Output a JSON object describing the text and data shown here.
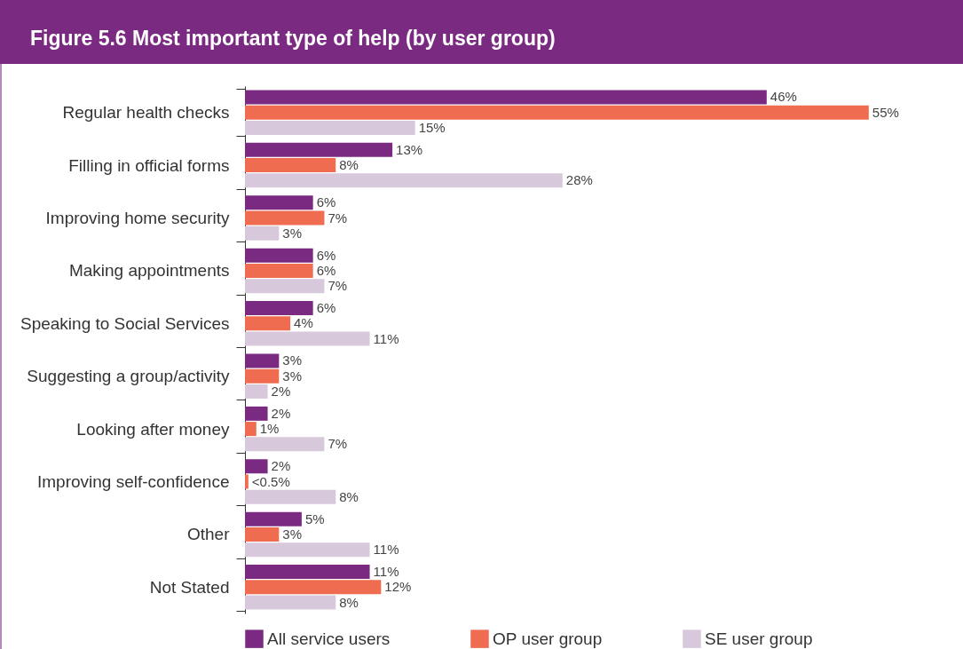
{
  "chart_data": {
    "type": "bar",
    "orientation": "horizontal",
    "title": "Figure 5.6 Most important type of help (by user group)",
    "categories": [
      "Regular health checks",
      "Filling in official forms",
      "Improving home security",
      "Making appointments",
      "Speaking to Social Services",
      "Suggesting a group/activity",
      "Looking after money",
      "Improving self-confidence",
      "Other",
      "Not Stated"
    ],
    "series": [
      {
        "name": "All service users",
        "color": "#7b2a82",
        "values": [
          46,
          13,
          6,
          6,
          6,
          3,
          2,
          2,
          5,
          11
        ],
        "value_labels": [
          "46%",
          "13%",
          "6%",
          "6%",
          "6%",
          "3%",
          "2%",
          "2%",
          "5%",
          "11%"
        ]
      },
      {
        "name": "OP user group",
        "color": "#ef6c50",
        "values": [
          55,
          8,
          7,
          6,
          4,
          3,
          1,
          0.3,
          3,
          12
        ],
        "value_labels": [
          "55%",
          "8%",
          "7%",
          "6%",
          "4%",
          "3%",
          "1%",
          "<0.5%",
          "3%",
          "12%"
        ]
      },
      {
        "name": "SE user group",
        "color": "#d8c8dc",
        "values": [
          15,
          28,
          3,
          7,
          11,
          2,
          7,
          8,
          11,
          8
        ],
        "value_labels": [
          "15%",
          "28%",
          "3%",
          "7%",
          "11%",
          "2%",
          "7%",
          "8%",
          "11%",
          "8%"
        ]
      }
    ],
    "legend": "bottom"
  }
}
